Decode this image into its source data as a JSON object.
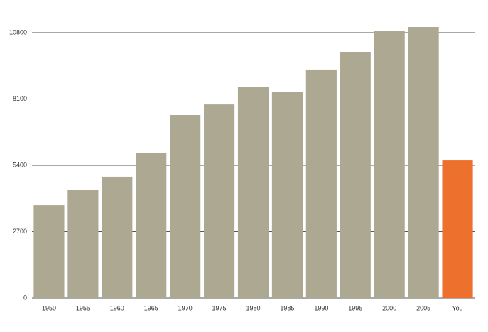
{
  "chart_data": {
    "type": "bar",
    "categories": [
      "1950",
      "1955",
      "1960",
      "1965",
      "1970",
      "1975",
      "1980",
      "1985",
      "1990",
      "1995",
      "2000",
      "2005",
      "You"
    ],
    "values": [
      3780,
      4390,
      4940,
      5920,
      7450,
      7880,
      8580,
      8380,
      9300,
      10020,
      10860,
      11030,
      5600
    ],
    "colors": [
      "#aca891",
      "#aca891",
      "#aca891",
      "#aca891",
      "#aca891",
      "#aca891",
      "#aca891",
      "#aca891",
      "#aca891",
      "#aca891",
      "#aca891",
      "#aca891",
      "#ee702d"
    ],
    "ylim": [
      0,
      10800
    ],
    "yticks": [
      0,
      2700,
      5400,
      8100,
      10800
    ],
    "grid": true
  }
}
